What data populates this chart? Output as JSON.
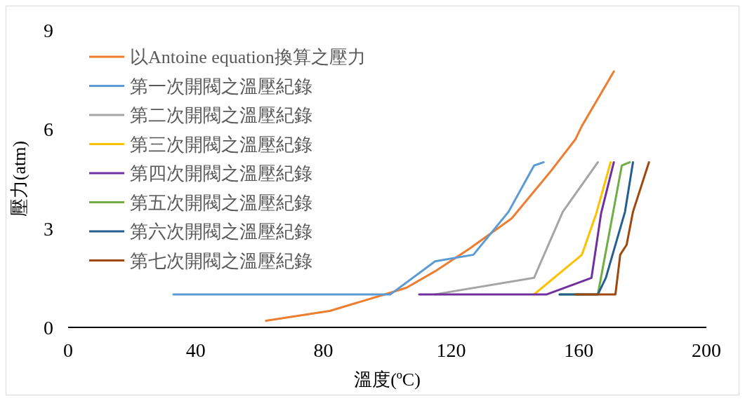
{
  "chart_data": {
    "type": "line",
    "xlabel": "溫度(ºC)",
    "ylabel": "壓力(atm)",
    "xlim": [
      0,
      200
    ],
    "xticks": [
      0,
      40,
      80,
      120,
      160,
      200
    ],
    "ylim": [
      0,
      9
    ],
    "yticks": [
      0,
      3,
      6,
      9
    ],
    "grid": false,
    "legend": "top left",
    "marker": "none",
    "line_style": "solid",
    "series": [
      {
        "name": "以Antoine equation換算之壓力",
        "color": "#ed7d31",
        "x": [
          62,
          82,
          101,
          106,
          115,
          126,
          139,
          151,
          159,
          161,
          171
        ],
        "values": [
          0.2,
          0.5,
          1.05,
          1.2,
          1.7,
          2.4,
          3.3,
          4.7,
          5.7,
          6.1,
          7.75
        ]
      },
      {
        "name": "第一次開閥之溫壓紀錄",
        "color": "#5b9bd5",
        "x": [
          33,
          101,
          115,
          127,
          138,
          146,
          149
        ],
        "values": [
          1,
          1,
          2,
          2.2,
          3.5,
          4.9,
          5
        ]
      },
      {
        "name": "第二次開閥之溫壓紀錄",
        "color": "#a5a5a5",
        "x": [
          115,
          146,
          155,
          166
        ],
        "values": [
          1,
          1.5,
          3.5,
          5
        ]
      },
      {
        "name": "第三次開閥之溫壓紀錄",
        "color": "#ffc000",
        "x": [
          146,
          161,
          165.5,
          170
        ],
        "values": [
          1,
          2.2,
          3.45,
          5
        ]
      },
      {
        "name": "第四次開閥之溫壓紀錄",
        "color": "#7030a0",
        "x": [
          110,
          150,
          164,
          167,
          171
        ],
        "values": [
          1,
          1,
          1.5,
          3.45,
          5
        ]
      },
      {
        "name": "第五次開閥之溫壓紀錄",
        "color": "#70ad47",
        "x": [
          154,
          166,
          173.5,
          176
        ],
        "values": [
          1,
          1,
          4.9,
          5
        ]
      },
      {
        "name": "第六次開閥之溫壓紀錄",
        "color": "#255e91",
        "x": [
          154,
          166,
          168.5,
          174.5,
          177
        ],
        "values": [
          1,
          1,
          1.5,
          3.5,
          5
        ]
      },
      {
        "name": "第七次開閥之溫壓紀錄",
        "color": "#9e480e",
        "x": [
          159,
          171.5,
          173,
          175,
          177,
          182
        ],
        "values": [
          1,
          1,
          2.2,
          2.5,
          3.5,
          5
        ]
      }
    ]
  }
}
